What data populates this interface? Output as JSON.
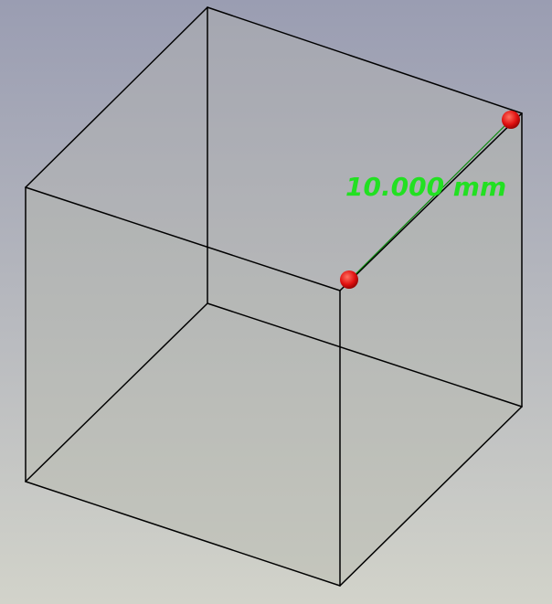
{
  "viewport": {
    "background_top": "#9a9db2",
    "background_bottom": "#d2d3ca"
  },
  "model": {
    "face_color": "#b6b8ae",
    "edge_color": "#000000"
  },
  "measurement": {
    "label": "10.000 mm",
    "line_color": "#0a8a0a",
    "text_color": "#22e022",
    "endpoint_color": "#e01010"
  }
}
